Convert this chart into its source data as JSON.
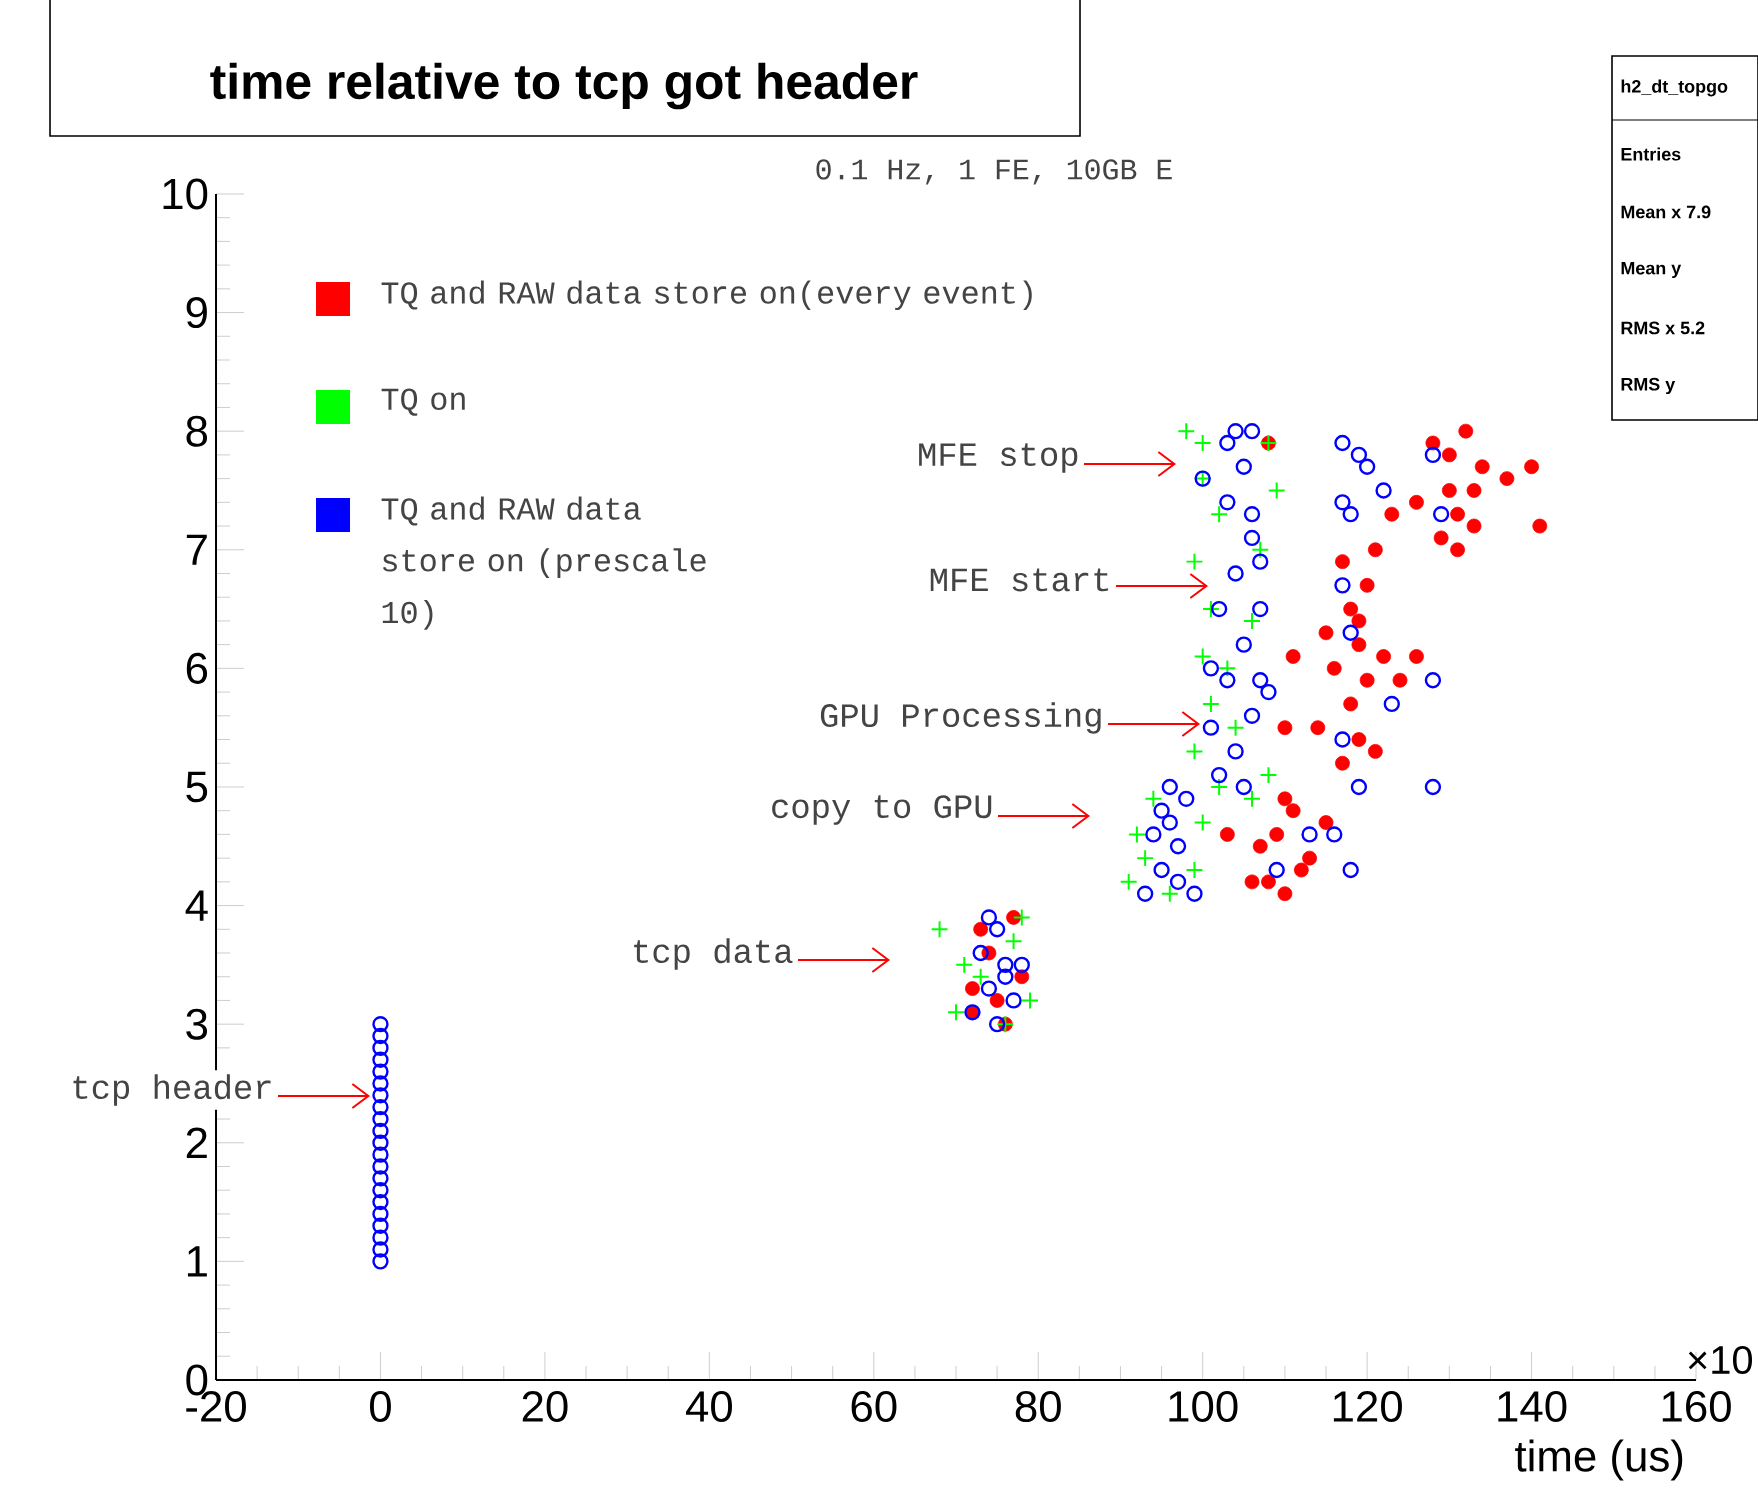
{
  "chart_data": {
    "type": "scatter",
    "title": "time relative to tcp got header",
    "subtitle": "0.1 Hz, 1 FE, 10GB E",
    "xlabel": "time (us)",
    "xlim": [
      -20,
      160
    ],
    "xticks": [
      -20,
      0,
      20,
      40,
      60,
      80,
      100,
      120,
      140,
      160
    ],
    "ylim": [
      0,
      10
    ],
    "yticks": [
      0,
      1,
      2,
      3,
      4,
      5,
      6,
      7,
      8,
      9,
      10
    ],
    "grid": false,
    "legend": "top left",
    "series": [
      {
        "name": "TQ and RAW data store on(every event)",
        "color": "#ff0000",
        "marker": "circle",
        "x": [
          72,
          73,
          76,
          78,
          74,
          77,
          75,
          72,
          108,
          110,
          112,
          109,
          111,
          113,
          110,
          107,
          115,
          106,
          117,
          119,
          121,
          118,
          120,
          116,
          119,
          122,
          118,
          120,
          117,
          121,
          119,
          115,
          124,
          114,
          126,
          129,
          131,
          133,
          130,
          132,
          128,
          134,
          131,
          133,
          130,
          141,
          140,
          137,
          126,
          123,
          110,
          103,
          108,
          111
        ],
        "values": [
          3.3,
          3.8,
          3.0,
          3.4,
          3.6,
          3.9,
          3.2,
          3.1,
          4.2,
          4.1,
          4.3,
          4.6,
          4.8,
          4.4,
          4.9,
          4.5,
          4.7,
          4.2,
          5.2,
          5.4,
          5.3,
          5.7,
          5.9,
          6.0,
          6.2,
          6.1,
          6.5,
          6.7,
          6.9,
          7.0,
          6.4,
          6.3,
          5.9,
          5.5,
          6.1,
          7.1,
          7.3,
          7.5,
          7.8,
          8.0,
          7.9,
          7.7,
          7.0,
          7.2,
          7.5,
          7.2,
          7.7,
          7.6,
          7.4,
          7.3,
          5.5,
          4.6,
          7.9,
          6.1
        ]
      },
      {
        "name": "TQ on",
        "color": "#00ff00",
        "marker": "cross",
        "x": [
          68,
          70,
          73,
          77,
          79,
          76,
          71,
          78,
          91,
          92,
          94,
          99,
          100,
          96,
          93,
          98,
          102,
          100,
          99,
          101,
          100,
          101,
          99,
          102,
          108,
          109,
          106,
          108,
          107,
          103,
          104,
          100,
          106
        ],
        "values": [
          3.8,
          3.1,
          3.4,
          3.7,
          3.2,
          3.0,
          3.5,
          3.9,
          4.2,
          4.6,
          4.9,
          4.3,
          4.7,
          4.1,
          4.4,
          8.0,
          7.3,
          7.6,
          6.9,
          6.5,
          6.1,
          5.7,
          5.3,
          5.0,
          7.9,
          7.5,
          6.4,
          5.1,
          7.0,
          6.0,
          5.5,
          7.9,
          4.9
        ]
      },
      {
        "name": "TQ and RAW data store on (prescale 10)",
        "color": "#0000ff",
        "marker": "open circle",
        "x": [
          0,
          0,
          0,
          0,
          0,
          0,
          0,
          0,
          0,
          0,
          0,
          0,
          0,
          0,
          0,
          0,
          0,
          0,
          0,
          0,
          0,
          72,
          74,
          76,
          75,
          73,
          77,
          75,
          74,
          76,
          78,
          93,
          95,
          97,
          96,
          98,
          94,
          97,
          99,
          96,
          95,
          102,
          104,
          106,
          103,
          105,
          107,
          104,
          106,
          103,
          105,
          104,
          106,
          102,
          107,
          101,
          105,
          103,
          106,
          100,
          107,
          101,
          108,
          117,
          119,
          120,
          128,
          122,
          117,
          118,
          117,
          118,
          128,
          123,
          117,
          119,
          128,
          116,
          113,
          109,
          118,
          129
        ],
        "values": [
          1.0,
          1.1,
          1.2,
          1.3,
          1.4,
          1.5,
          1.6,
          1.7,
          1.8,
          1.9,
          2.0,
          2.1,
          2.2,
          2.3,
          2.4,
          2.5,
          2.6,
          2.7,
          2.8,
          2.9,
          3.0,
          3.1,
          3.3,
          3.5,
          3.8,
          3.6,
          3.2,
          3.0,
          3.9,
          3.4,
          3.5,
          4.1,
          4.3,
          4.5,
          4.7,
          4.9,
          4.6,
          4.2,
          4.1,
          5.0,
          4.8,
          5.1,
          5.3,
          5.6,
          5.9,
          6.2,
          6.5,
          6.8,
          7.1,
          7.4,
          7.7,
          8.0,
          8.0,
          6.5,
          5.9,
          5.5,
          5.0,
          7.9,
          7.3,
          7.6,
          6.9,
          6.0,
          5.8,
          7.9,
          7.8,
          7.7,
          7.8,
          7.5,
          7.4,
          7.3,
          6.7,
          6.3,
          5.9,
          5.7,
          5.4,
          5.0,
          5.0,
          4.6,
          4.6,
          4.3,
          4.3,
          7.3
        ]
      }
    ],
    "annotations": [
      "MFE stop",
      "MFE start",
      "GPU Processing",
      "copy to GPU",
      "tcp data",
      "tcp header",
      "×10",
      "h2_dt_topgo",
      "Entries",
      "Mean x  7.9",
      "Mean y",
      "RMS x  5.2",
      "RMS y"
    ]
  }
}
